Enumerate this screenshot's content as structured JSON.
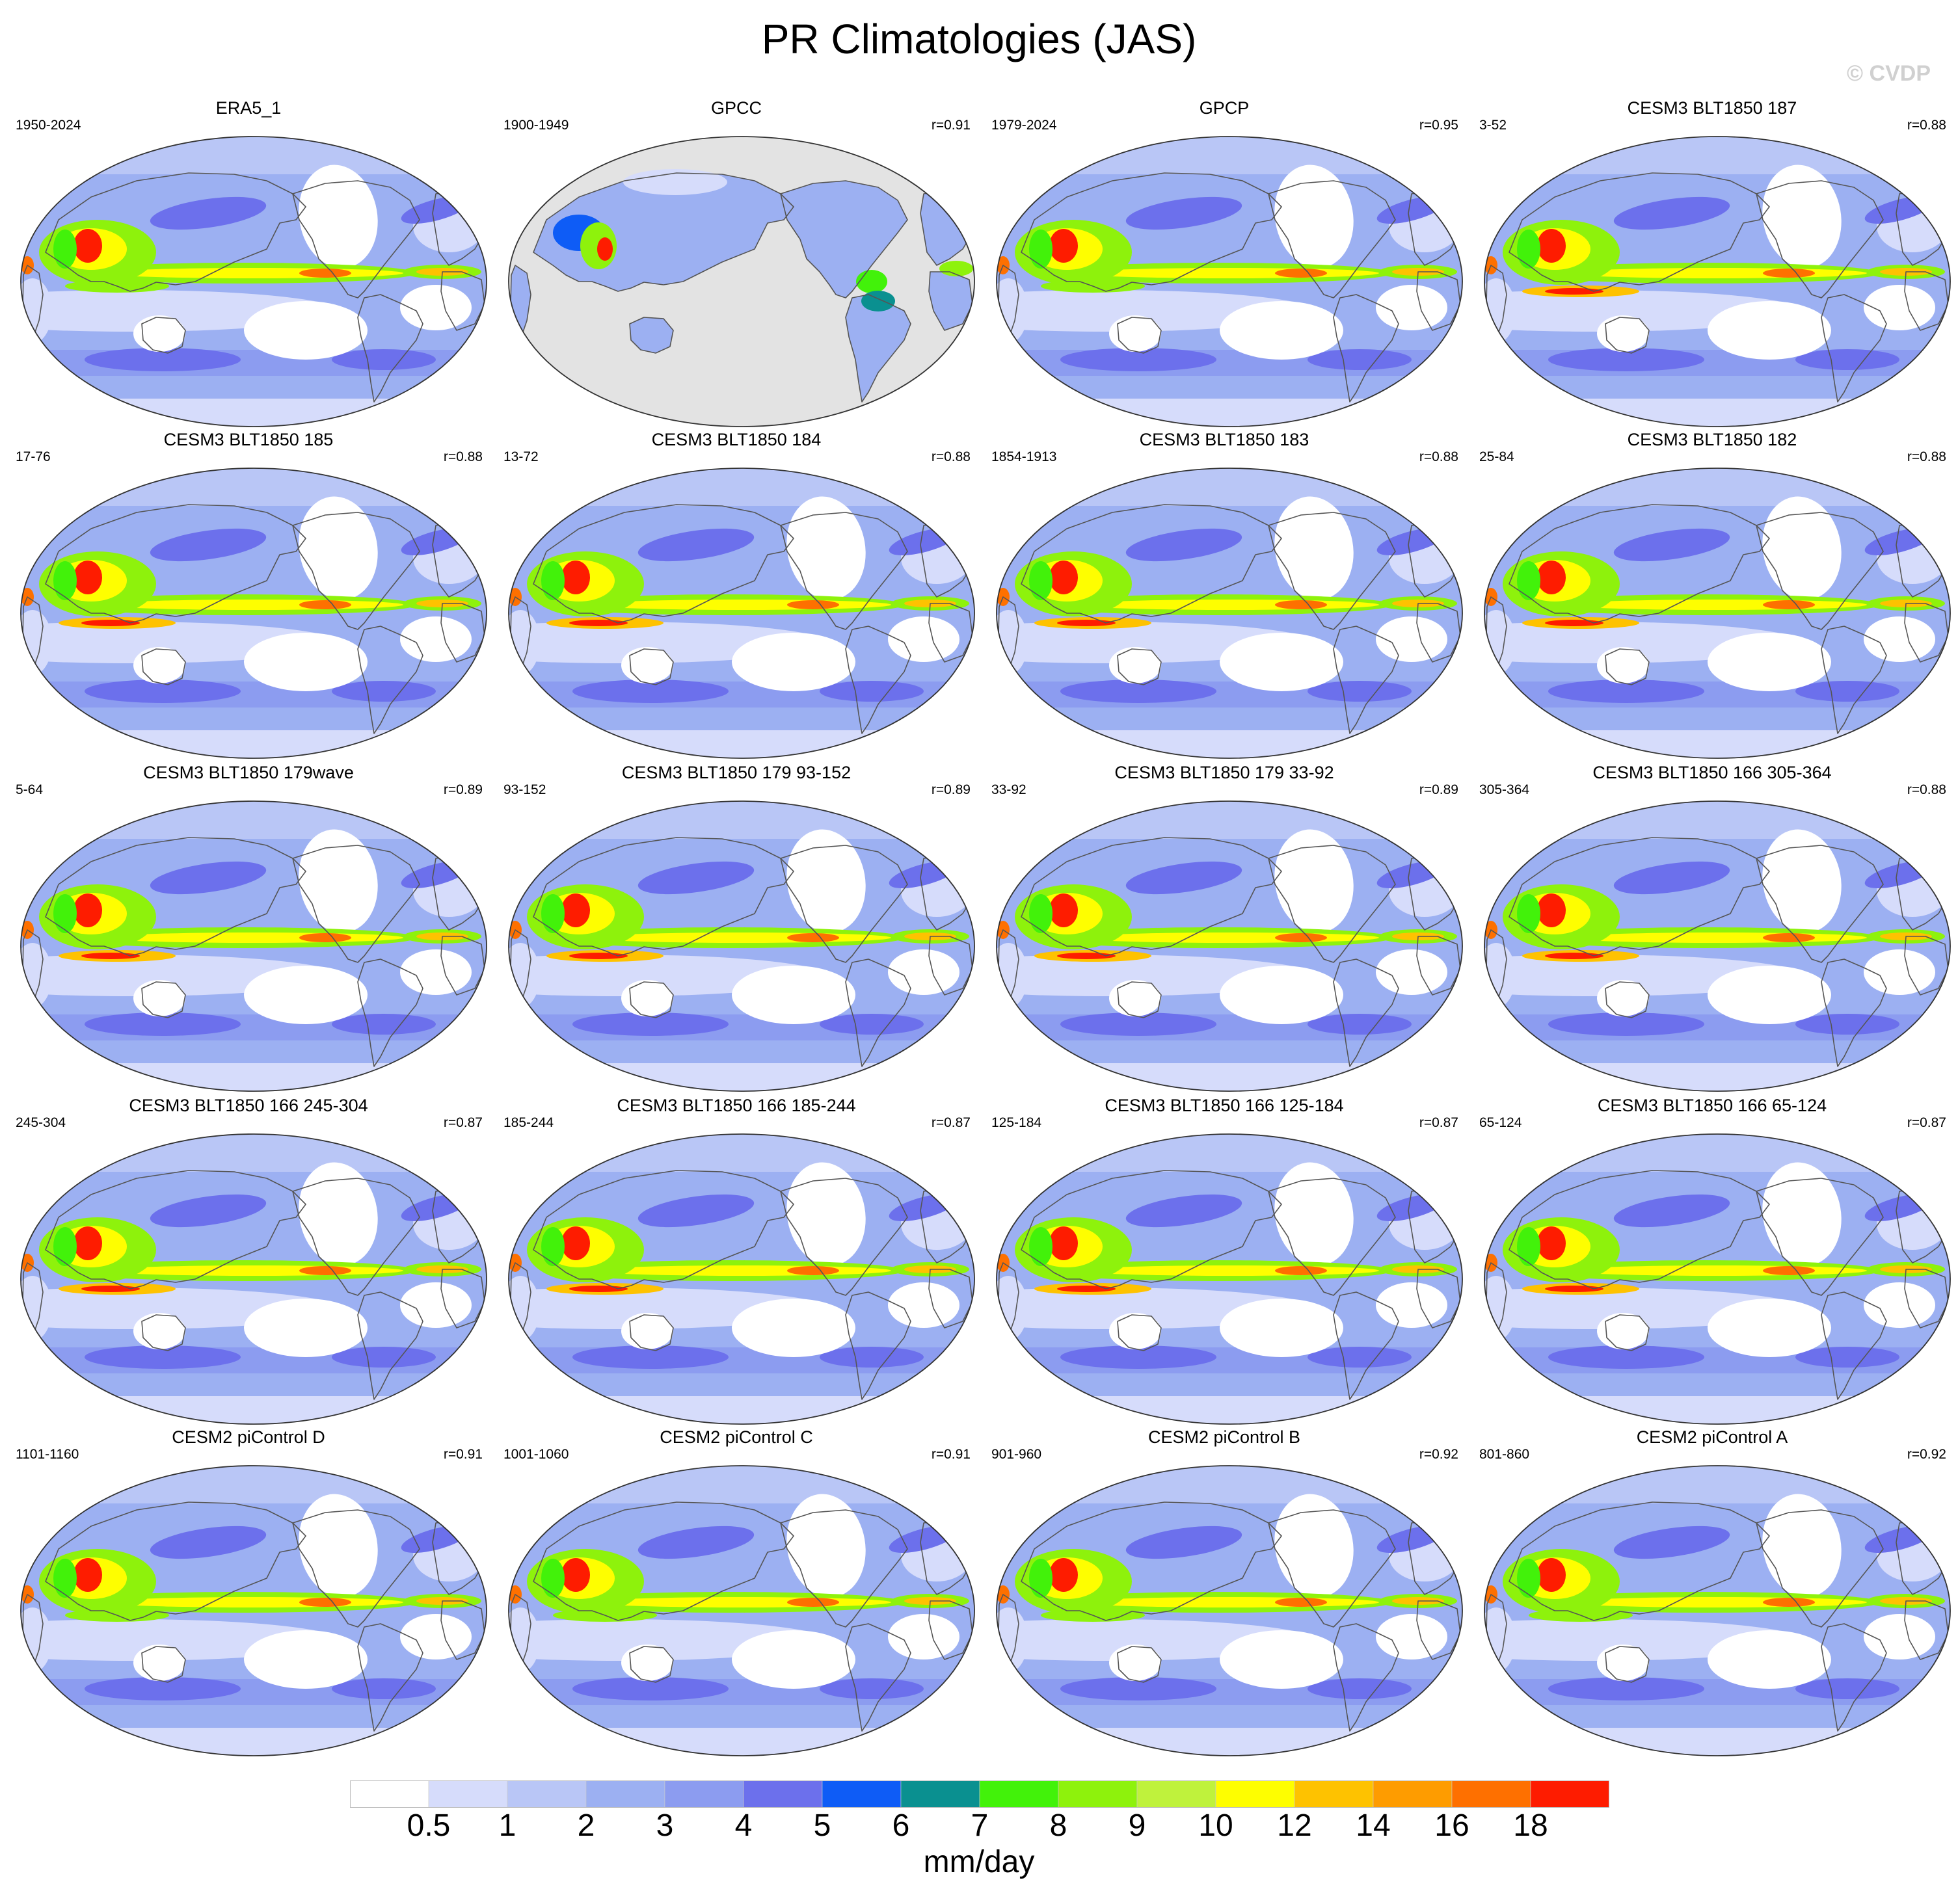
{
  "title": "PR Climatologies (JAS)",
  "copyright": "© CVDP",
  "panels": [
    {
      "title": "ERA5_1",
      "period": "1950-2024",
      "corr": "",
      "style": "obs"
    },
    {
      "title": "GPCC",
      "period": "1900-1949",
      "corr": "r=0.91",
      "style": "land"
    },
    {
      "title": "GPCP",
      "period": "1979-2024",
      "corr": "r=0.95",
      "style": "obs"
    },
    {
      "title": "CESM3 BLT1850 187",
      "period": "3-52",
      "corr": "r=0.88",
      "style": "model"
    },
    {
      "title": "CESM3 BLT1850 185",
      "period": "17-76",
      "corr": "r=0.88",
      "style": "model"
    },
    {
      "title": "CESM3 BLT1850 184",
      "period": "13-72",
      "corr": "r=0.88",
      "style": "model"
    },
    {
      "title": "CESM3 BLT1850 183",
      "period": "1854-1913",
      "corr": "r=0.88",
      "style": "model"
    },
    {
      "title": "CESM3 BLT1850 182",
      "period": "25-84",
      "corr": "r=0.88",
      "style": "model"
    },
    {
      "title": "CESM3 BLT1850 179wave",
      "period": "5-64",
      "corr": "r=0.89",
      "style": "model"
    },
    {
      "title": "CESM3 BLT1850 179 93-152",
      "period": "93-152",
      "corr": "r=0.89",
      "style": "model"
    },
    {
      "title": "CESM3 BLT1850 179 33-92",
      "period": "33-92",
      "corr": "r=0.89",
      "style": "model"
    },
    {
      "title": "CESM3 BLT1850 166 305-364",
      "period": "305-364",
      "corr": "r=0.88",
      "style": "model"
    },
    {
      "title": "CESM3 BLT1850 166 245-304",
      "period": "245-304",
      "corr": "r=0.87",
      "style": "model"
    },
    {
      "title": "CESM3 BLT1850 166 185-244",
      "period": "185-244",
      "corr": "r=0.87",
      "style": "model"
    },
    {
      "title": "CESM3 BLT1850 166 125-184",
      "period": "125-184",
      "corr": "r=0.87",
      "style": "model"
    },
    {
      "title": "CESM3 BLT1850 166 65-124",
      "period": "65-124",
      "corr": "r=0.87",
      "style": "model"
    },
    {
      "title": "CESM2 piControl D",
      "period": "1101-1160",
      "corr": "r=0.91",
      "style": "cesm2"
    },
    {
      "title": "CESM2 piControl C",
      "period": "1001-1060",
      "corr": "r=0.91",
      "style": "cesm2"
    },
    {
      "title": "CESM2 piControl B",
      "period": "901-960",
      "corr": "r=0.92",
      "style": "cesm2"
    },
    {
      "title": "CESM2 piControl A",
      "period": "801-860",
      "corr": "r=0.92",
      "style": "cesm2"
    }
  ],
  "colorbar": {
    "units": "mm/day",
    "labels": [
      "0.5",
      "1",
      "2",
      "3",
      "4",
      "5",
      "6",
      "7",
      "8",
      "9",
      "10",
      "12",
      "14",
      "16",
      "18"
    ],
    "colors": [
      "#ffffff",
      "#d6dcfb",
      "#b9c6f6",
      "#9cb0f2",
      "#8c9cf0",
      "#6c70ec",
      "#0e5cf6",
      "#0a9090",
      "#42f20a",
      "#8ef20c",
      "#bff23c",
      "#fefe00",
      "#fec200",
      "#fe9c00",
      "#fe7000",
      "#fe1c00"
    ]
  },
  "colors": {
    "ocean_gray": "#e3e3e3",
    "coast": "#555555"
  }
}
